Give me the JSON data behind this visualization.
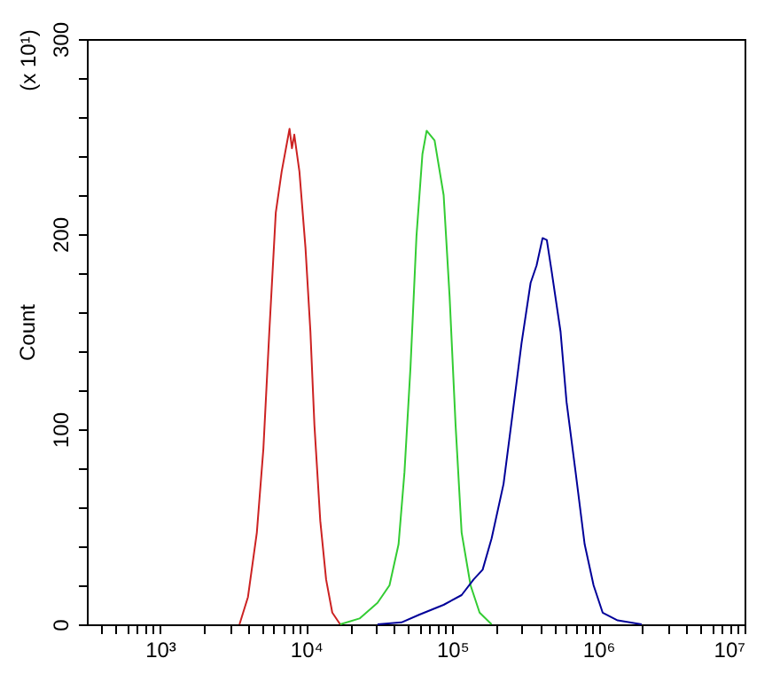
{
  "chart_data": {
    "type": "line",
    "ylabel": "Count",
    "annotations": [
      "(x 10¹)"
    ],
    "log": "x",
    "grid": false,
    "legend": false,
    "marker": "none",
    "line_style": "solid",
    "xlim": [
      316,
      10000000
    ],
    "ylim": [
      0,
      300
    ],
    "xticks": [
      {
        "value": 400,
        "label": null
      },
      {
        "value": 500,
        "label": null
      },
      {
        "value": 600,
        "label": null
      },
      {
        "value": 700,
        "label": null
      },
      {
        "value": 800,
        "label": null
      },
      {
        "value": 900,
        "label": null
      },
      {
        "value": 1000,
        "label": "10³"
      },
      {
        "value": 2000,
        "label": null
      },
      {
        "value": 3000,
        "label": null
      },
      {
        "value": 4000,
        "label": null
      },
      {
        "value": 5000,
        "label": null
      },
      {
        "value": 6000,
        "label": null
      },
      {
        "value": 7000,
        "label": null
      },
      {
        "value": 8000,
        "label": null
      },
      {
        "value": 9000,
        "label": null
      },
      {
        "value": 10000,
        "label": "10⁴"
      },
      {
        "value": 20000,
        "label": null
      },
      {
        "value": 30000,
        "label": null
      },
      {
        "value": 40000,
        "label": null
      },
      {
        "value": 50000,
        "label": null
      },
      {
        "value": 60000,
        "label": null
      },
      {
        "value": 70000,
        "label": null
      },
      {
        "value": 80000,
        "label": null
      },
      {
        "value": 90000,
        "label": null
      },
      {
        "value": 100000,
        "label": "10⁵"
      },
      {
        "value": 200000,
        "label": null
      },
      {
        "value": 300000,
        "label": null
      },
      {
        "value": 400000,
        "label": null
      },
      {
        "value": 500000,
        "label": null
      },
      {
        "value": 600000,
        "label": null
      },
      {
        "value": 700000,
        "label": null
      },
      {
        "value": 800000,
        "label": null
      },
      {
        "value": 900000,
        "label": null
      },
      {
        "value": 1000000,
        "label": "10⁶"
      },
      {
        "value": 2000000,
        "label": null
      },
      {
        "value": 3000000,
        "label": null
      },
      {
        "value": 4000000,
        "label": null
      },
      {
        "value": 5000000,
        "label": null
      },
      {
        "value": 6000000,
        "label": null
      },
      {
        "value": 7000000,
        "label": null
      },
      {
        "value": 8000000,
        "label": null
      },
      {
        "value": 9000000,
        "label": null
      },
      {
        "value": 10000000,
        "label": "10⁷"
      }
    ],
    "yticks": [
      0,
      {
        "value": 20,
        "label": null
      },
      {
        "value": 40,
        "label": null
      },
      {
        "value": 60,
        "label": null
      },
      {
        "value": 80,
        "label": null
      },
      100,
      {
        "value": 120,
        "label": null
      },
      {
        "value": 140,
        "label": null
      },
      {
        "value": 160,
        "label": null
      },
      {
        "value": 180,
        "label": null
      },
      200,
      {
        "value": 220,
        "label": null
      },
      {
        "value": 240,
        "label": null
      },
      {
        "value": 260,
        "label": null
      },
      {
        "value": 280,
        "label": null
      },
      300
    ],
    "series": [
      {
        "color": "#cc2222",
        "x": [
          3500,
          4000,
          4600,
          5100,
          5600,
          6200,
          6800,
          7700,
          8000,
          8300,
          9000,
          9900,
          10700,
          11400,
          12500,
          13700,
          15100,
          17100
        ],
        "values": [
          0,
          14,
          47,
          90,
          150,
          211,
          232,
          254,
          244,
          251,
          232,
          193,
          150,
          102,
          53,
          23,
          6,
          0
        ]
      },
      {
        "color": "#33cc33",
        "x": [
          17100,
          23200,
          30800,
          37200,
          42900,
          47100,
          51800,
          56900,
          62500,
          66800,
          75700,
          87300,
          95900,
          105400,
          115900,
          133400,
          153800,
          185800
        ],
        "values": [
          0,
          3,
          11,
          20,
          41,
          78,
          132,
          199,
          241,
          253,
          248,
          220,
          168,
          102,
          47,
          20,
          6,
          0
        ]
      },
      {
        "color": "#000099",
        "x": [
          30800,
          44900,
          59700,
          87300,
          115900,
          140000,
          161400,
          185800,
          224400,
          258800,
          297800,
          343600,
          377600,
          415000,
          443600,
          478600,
          550800,
          605300,
          698200,
          805400,
          926800,
          1069000,
          1355000,
          1637000,
          1977000
        ],
        "values": [
          0,
          1,
          5,
          10,
          15,
          23,
          28,
          44,
          72,
          108,
          144,
          175,
          184,
          198,
          197,
          181,
          150,
          114,
          78,
          41,
          20,
          6,
          2,
          1,
          0
        ]
      }
    ]
  }
}
